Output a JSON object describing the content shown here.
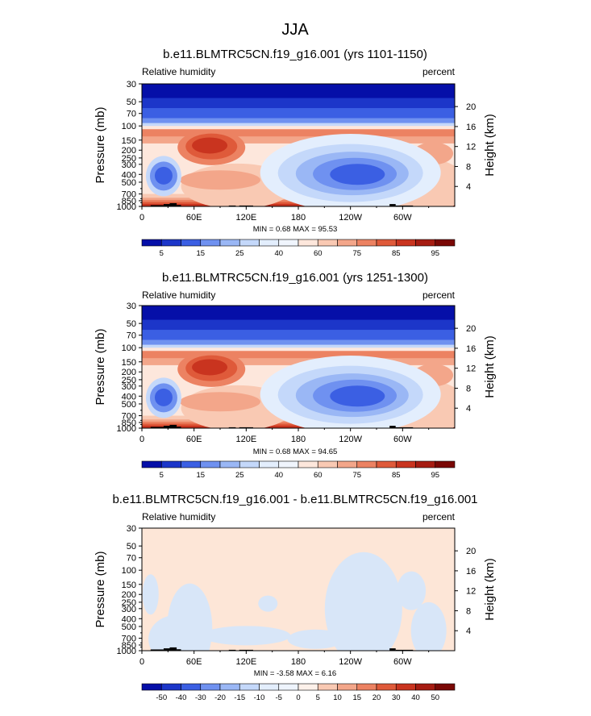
{
  "figure": {
    "title": "JJA"
  },
  "colors": {
    "plot_fill": "#fbe3d6",
    "cold_palette": [
      "#050fa8",
      "#1c36c9",
      "#3b5fe3",
      "#6f91f0",
      "#9ab7f5",
      "#c4d8fa",
      "#e3eefd"
    ],
    "warm_palette": [
      "#fde7dc",
      "#f9c9b3",
      "#f3a68a",
      "#ec8262",
      "#df5a3a",
      "#c9341f",
      "#a61c12",
      "#7a0805"
    ],
    "topo": "#000000",
    "diff_positive": "#fde6d7",
    "diff_negative": "#d8e6f8"
  },
  "chart_data": [
    {
      "type": "heatmap",
      "title": "b.e11.BLMTRC5CN.f19_g16.001 (yrs 1101-1150)",
      "left_label": "Relative humidity",
      "right_label": "percent",
      "ylabel": "Pressure (mb)",
      "ylabel_right": "Height (km)",
      "y_ticks": [
        "30",
        "50",
        "70",
        "100",
        "150",
        "200",
        "250",
        "300",
        "400",
        "500",
        "700",
        "850",
        "1000"
      ],
      "y_tick_values": [
        30,
        50,
        70,
        100,
        150,
        200,
        250,
        300,
        400,
        500,
        700,
        850,
        1000
      ],
      "y2_ticks": [
        "20",
        "16",
        "12",
        "8",
        "4"
      ],
      "y2_tick_values": [
        20,
        16,
        12,
        8,
        4
      ],
      "x_ticks": [
        "0",
        "60E",
        "120E",
        "180",
        "120W",
        "60W"
      ],
      "x_tick_values": [
        0,
        60,
        120,
        180,
        240,
        300
      ],
      "xlim": [
        0,
        360
      ],
      "ylim": [
        1000,
        30
      ],
      "stats": "MIN =   0.68  MAX =  95.53",
      "colorbar_labels": [
        "5",
        "15",
        "25",
        "40",
        "60",
        "75",
        "85",
        "95"
      ],
      "colorbar_levels": [
        5,
        10,
        15,
        20,
        25,
        30,
        40,
        50,
        60,
        70,
        75,
        80,
        85,
        90,
        95
      ]
    },
    {
      "type": "heatmap",
      "title": "b.e11.BLMTRC5CN.f19_g16.001 (yrs 1251-1300)",
      "left_label": "Relative humidity",
      "right_label": "percent",
      "ylabel": "Pressure (mb)",
      "ylabel_right": "Height (km)",
      "y_ticks": [
        "30",
        "50",
        "70",
        "100",
        "150",
        "200",
        "250",
        "300",
        "400",
        "500",
        "700",
        "850",
        "1000"
      ],
      "y_tick_values": [
        30,
        50,
        70,
        100,
        150,
        200,
        250,
        300,
        400,
        500,
        700,
        850,
        1000
      ],
      "y2_ticks": [
        "20",
        "16",
        "12",
        "8",
        "4"
      ],
      "y2_tick_values": [
        20,
        16,
        12,
        8,
        4
      ],
      "x_ticks": [
        "0",
        "60E",
        "120E",
        "180",
        "120W",
        "60W"
      ],
      "x_tick_values": [
        0,
        60,
        120,
        180,
        240,
        300
      ],
      "xlim": [
        0,
        360
      ],
      "ylim": [
        1000,
        30
      ],
      "stats": "MIN =   0.68  MAX =  94.65",
      "colorbar_labels": [
        "5",
        "15",
        "25",
        "40",
        "60",
        "75",
        "85",
        "95"
      ],
      "colorbar_levels": [
        5,
        10,
        15,
        20,
        25,
        30,
        40,
        50,
        60,
        70,
        75,
        80,
        85,
        90,
        95
      ]
    },
    {
      "type": "heatmap",
      "title": "b.e11.BLMTRC5CN.f19_g16.001 - b.e11.BLMTRC5CN.f19_g16.001",
      "left_label": "Relative humidity",
      "right_label": "percent",
      "ylabel": "Pressure (mb)",
      "ylabel_right": "Height (km)",
      "y_ticks": [
        "30",
        "50",
        "70",
        "100",
        "150",
        "200",
        "250",
        "300",
        "400",
        "500",
        "700",
        "850",
        "1000"
      ],
      "y_tick_values": [
        30,
        50,
        70,
        100,
        150,
        200,
        250,
        300,
        400,
        500,
        700,
        850,
        1000
      ],
      "y2_ticks": [
        "20",
        "16",
        "12",
        "8",
        "4"
      ],
      "y2_tick_values": [
        20,
        16,
        12,
        8,
        4
      ],
      "x_ticks": [
        "0",
        "60E",
        "120E",
        "180",
        "120W",
        "60W"
      ],
      "x_tick_values": [
        0,
        60,
        120,
        180,
        240,
        300
      ],
      "xlim": [
        0,
        360
      ],
      "ylim": [
        1000,
        30
      ],
      "stats": "MIN =  -3.58  MAX =   6.16",
      "colorbar_labels": [
        "-50",
        "-40",
        "-30",
        "-20",
        "-15",
        "-10",
        "-5",
        "0",
        "5",
        "10",
        "15",
        "20",
        "30",
        "40",
        "50"
      ],
      "colorbar_levels": [
        -50,
        -40,
        -30,
        -20,
        -15,
        -10,
        -5,
        0,
        5,
        10,
        15,
        20,
        30,
        40,
        50
      ]
    }
  ]
}
